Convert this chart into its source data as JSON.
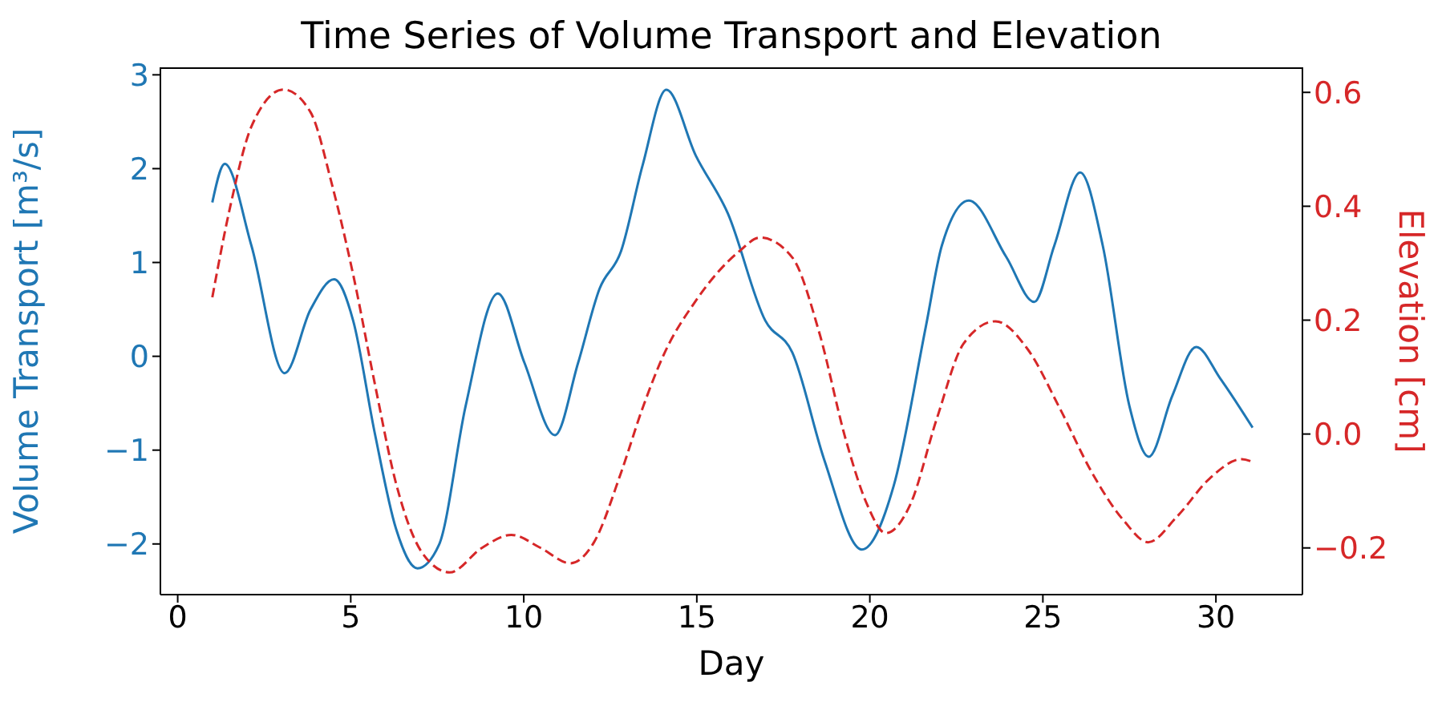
{
  "chart_data": {
    "type": "line",
    "title": "Time Series of Volume Transport and Elevation",
    "xlabel": "Day",
    "ylabel": "Volume Transport [m³/s]",
    "y2label": "Elevation [cm]",
    "xlim": [
      -0.5,
      32.5
    ],
    "xticks": [
      0,
      5,
      10,
      15,
      20,
      25,
      30
    ],
    "ylim": [
      -2.54,
      3.08
    ],
    "yticks": [
      {
        "value": -2,
        "label": "−2"
      },
      {
        "value": -1,
        "label": "−1"
      },
      0,
      1,
      2,
      3
    ],
    "y2lim": [
      -0.282,
      0.644
    ],
    "y2ticks": [
      {
        "value": -0.2,
        "label": "−0.2"
      },
      {
        "value": 0,
        "label": "0.0"
      },
      0.2,
      0.4,
      0.6
    ],
    "grid": false,
    "legend": false,
    "marker": "none",
    "series": [
      {
        "color": "#1f77b4",
        "line_style": "solid",
        "x": [
          1,
          1.36,
          2.13,
          3.09,
          3.84,
          4.52,
          5.07,
          5.69,
          6.31,
          6.93,
          7.55,
          8.32,
          9.25,
          10.02,
          10.9,
          11.57,
          12.19,
          12.81,
          13.43,
          14.12,
          14.97,
          15.9,
          16.98,
          17.76,
          18.68,
          19.77,
          20.69,
          21.62,
          22.08,
          22.86,
          23.94,
          24.75,
          25.33,
          26.08,
          26.73,
          27.5,
          28.06,
          28.74,
          29.43,
          30.13,
          31.06
        ],
        "values": [
          1.64,
          2.05,
          1.18,
          -0.18,
          0.5,
          0.82,
          0.38,
          -0.81,
          -1.84,
          -2.26,
          -2.01,
          -0.53,
          0.67,
          -0.07,
          -0.84,
          -0.07,
          0.72,
          1.12,
          2.03,
          2.84,
          2.14,
          1.52,
          0.38,
          0.04,
          -1.1,
          -2.06,
          -1.38,
          0.32,
          1.18,
          1.66,
          1.06,
          0.58,
          1.18,
          1.96,
          1.18,
          -0.53,
          -1.07,
          -0.42,
          0.1,
          -0.24,
          -0.76
        ]
      },
      {
        "color": "#d62728",
        "line_style": "dashed",
        "axis": "y2",
        "x": [
          1,
          1.52,
          2.13,
          3.06,
          3.84,
          4.45,
          5.07,
          5.69,
          6.31,
          7.08,
          7.86,
          8.79,
          9.64,
          10.49,
          11.34,
          12.03,
          12.81,
          13.43,
          14.05,
          14.97,
          16.21,
          16.83,
          17.76,
          18.53,
          19.31,
          19.93,
          20.46,
          21.16,
          21.93,
          22.71,
          23.63,
          24.56,
          25.49,
          26.42,
          27.35,
          28.04,
          28.89,
          29.82,
          30.75,
          31.06
        ],
        "values": [
          0.24,
          0.4,
          0.54,
          0.605,
          0.565,
          0.44,
          0.28,
          0.09,
          -0.087,
          -0.21,
          -0.243,
          -0.2,
          -0.177,
          -0.2,
          -0.227,
          -0.19,
          -0.068,
          0.045,
          0.14,
          0.234,
          0.32,
          0.345,
          0.31,
          0.18,
          -0.011,
          -0.125,
          -0.174,
          -0.125,
          0.026,
          0.159,
          0.198,
          0.149,
          0.045,
          -0.068,
          -0.153,
          -0.19,
          -0.144,
          -0.078,
          -0.044,
          -0.049
        ]
      }
    ]
  }
}
